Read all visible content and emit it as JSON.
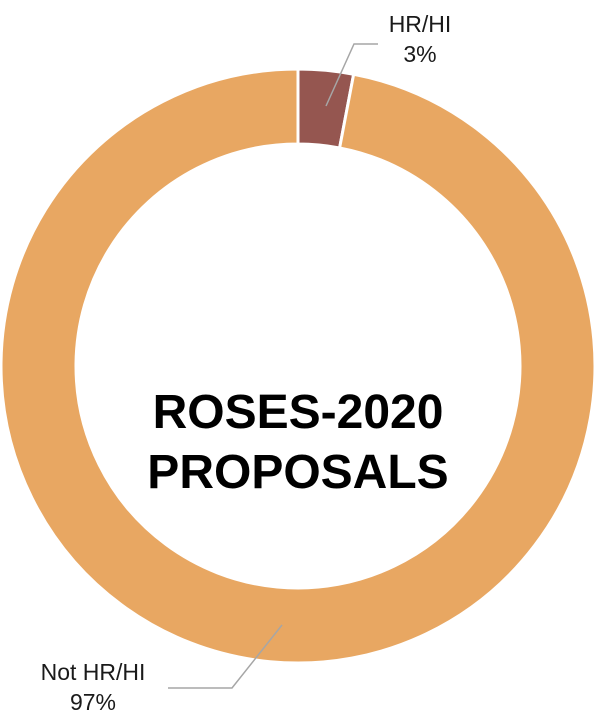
{
  "chart_data": {
    "type": "pie",
    "variant": "donut",
    "title": "ROSES-2020 PROPOSALS",
    "title_lines": [
      "ROSES-2020",
      "PROPOSALS"
    ],
    "slices": [
      {
        "label": "HR/HI",
        "value": 3,
        "value_label": "3%",
        "color": "#955650"
      },
      {
        "label": "Not HR/HI",
        "value": 97,
        "value_label": "97%",
        "color": "#E8A762"
      }
    ],
    "legend": "none",
    "data_labels": "outside-with-leader-lines"
  }
}
